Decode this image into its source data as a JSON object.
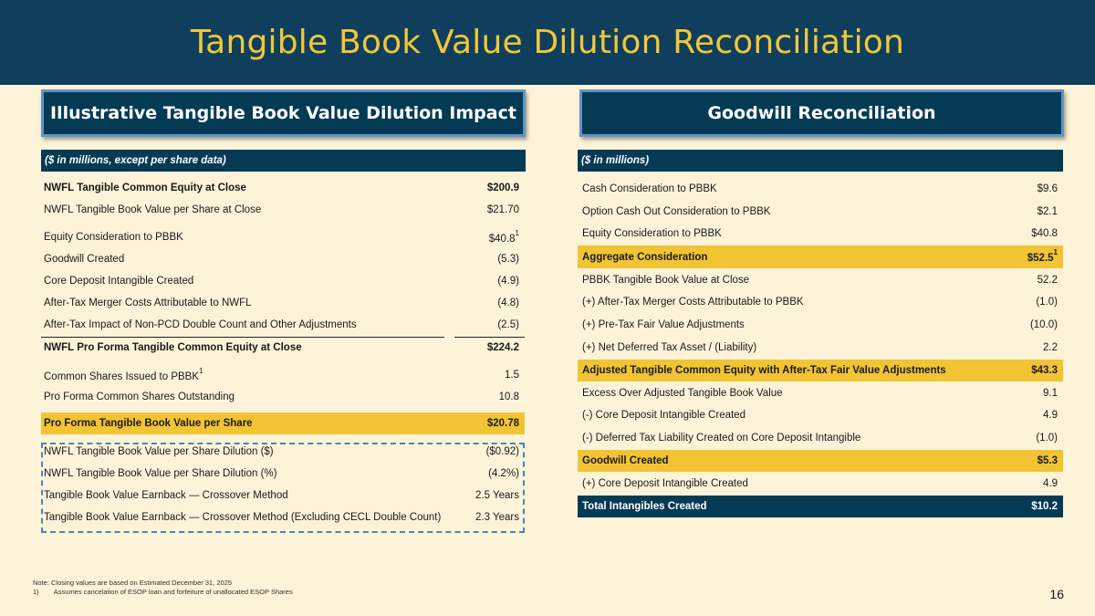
{
  "title": "Tangible Book Value Dilution Reconciliation",
  "left": {
    "heading": "Illustrative Tangible Book Value Dilution Impact",
    "subheading": "($ in millions, except per share data)",
    "rows": [
      {
        "label": "NWFL Tangible Common Equity at Close",
        "value": "$200.9"
      },
      {
        "label": "NWFL Tangible Book Value per Share at Close",
        "value": "$21.70"
      },
      {
        "label": "Equity Consideration to PBBK",
        "value": "$40.8",
        "sup": "1"
      },
      {
        "label": "Goodwill Created",
        "value": "(5.3)"
      },
      {
        "label": "Core Deposit Intangible Created",
        "value": "(4.9)"
      },
      {
        "label": "After-Tax Merger Costs Attributable to NWFL",
        "value": "(4.8)"
      },
      {
        "label": "After-Tax Impact of Non-PCD Double Count and Other Adjustments",
        "value": "(2.5)"
      },
      {
        "label": "NWFL Pro Forma Tangible Common Equity at Close",
        "value": "$224.2"
      },
      {
        "label": "Common Shares Issued to PBBK",
        "value": "1.5",
        "sup": "1"
      },
      {
        "label": "Pro Forma Common Shares Outstanding",
        "value": "10.8"
      },
      {
        "label": "Pro Forma Tangible Book Value per Share",
        "value": "$20.78"
      },
      {
        "label": "NWFL Tangible Book Value per Share Dilution ($)",
        "value": "($0.92)"
      },
      {
        "label": "NWFL Tangible Book Value per Share Dilution (%)",
        "value": "(4.2%)"
      },
      {
        "label": "Tangible Book Value Earnback — Crossover Method",
        "value": "2.5 Years"
      },
      {
        "label": "Tangible Book Value Earnback — Crossover Method (Excluding CECL Double Count)",
        "value": "2.3 Years"
      }
    ]
  },
  "right": {
    "heading": "Goodwill Reconciliation",
    "subheading": "($ in millions)",
    "rows": [
      {
        "label": "Cash Consideration to PBBK",
        "value": "$9.6"
      },
      {
        "label": "Option Cash Out Consideration to PBBK",
        "value": "$2.1"
      },
      {
        "label": "Equity Consideration to PBBK",
        "value": "$40.8"
      },
      {
        "label": "Aggregate Consideration",
        "value": "$52.5",
        "sup": "1"
      },
      {
        "label": "PBBK Tangible Book Value at Close",
        "value": "52.2"
      },
      {
        "label": "(+) After-Tax Merger Costs Attributable to PBBK",
        "value": "(1.0)"
      },
      {
        "label": "(+) Pre-Tax Fair Value Adjustments",
        "value": "(10.0)"
      },
      {
        "label": "(+) Net Deferred Tax Asset / (Liability)",
        "value": "2.2"
      },
      {
        "label": "Adjusted Tangible Common Equity with After-Tax Fair Value Adjustments",
        "value": "$43.3"
      },
      {
        "label": "Excess Over Adjusted Tangible Book Value",
        "value": "9.1"
      },
      {
        "label": "(-) Core Deposit Intangible Created",
        "value": "4.9"
      },
      {
        "label": "(-) Deferred Tax Liability Created on Core Deposit Intangible",
        "value": "(1.0)"
      },
      {
        "label": "Goodwill Created",
        "value": "$5.3"
      },
      {
        "label": "(+) Core Deposit Intangible Created",
        "value": "4.9"
      },
      {
        "label": "Total Intangibles Created",
        "value": "$10.2"
      }
    ]
  },
  "notes": {
    "line1": "Note: Closing values are based on Estimated December 31, 2025",
    "line2_num": "1)",
    "line2_text": "Assumes cancelation of ESOP loan and forfeiture of unallocated ESOP Shares"
  },
  "page_number": "16",
  "colors": {
    "background": "#FCF3D8",
    "navy": "#053A54",
    "title_text": "#F2C738",
    "highlight": "#F2C434",
    "dash_border": "#4A86B8"
  }
}
